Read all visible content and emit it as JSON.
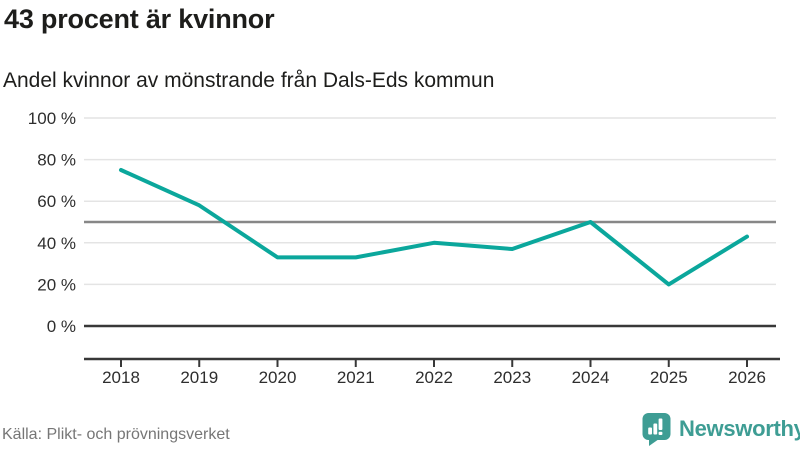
{
  "meta": {
    "title": "43 procent är kvinnor",
    "subtitle": "Andel kvinnor av mönstrande från Dals-Eds kommun",
    "source": "Källa: Plikt- och prövningsverket"
  },
  "branding": {
    "name": "Newsworthy",
    "logo_icon": "bar-chart-speech-bubble-icon",
    "color": "#3e9d94"
  },
  "colors": {
    "line": "#0ba79c",
    "gridline": "#e4e4e4",
    "zero_line": "#383838",
    "axis": "#383838",
    "reference_line": "#878787",
    "tick_text": "#2e2e2e",
    "title_text": "#1d1d1b",
    "source_text": "#767676"
  },
  "chart_data": {
    "type": "line",
    "title": "43 procent är kvinnor",
    "subtitle": "Andel kvinnor av mönstrande från Dals-Eds kommun",
    "x": [
      2018,
      2019,
      2020,
      2021,
      2022,
      2023,
      2024,
      2025,
      2026
    ],
    "series": [
      {
        "name": "Andel kvinnor av mönstrande",
        "values": [
          75,
          58,
          33,
          33,
          40,
          37,
          50,
          20,
          43
        ],
        "color": "#0ba79c"
      }
    ],
    "xlabel": "",
    "ylabel": "",
    "ylim": [
      0,
      100
    ],
    "y_ticks": [
      {
        "value": 0,
        "label": "0 %"
      },
      {
        "value": 20,
        "label": "20 %"
      },
      {
        "value": 40,
        "label": "40 %"
      },
      {
        "value": 60,
        "label": "60 %"
      },
      {
        "value": 80,
        "label": "80 %"
      },
      {
        "value": 100,
        "label": "100 %"
      }
    ],
    "reference_line": {
      "value": 50
    },
    "grid": true,
    "legend": "none"
  }
}
